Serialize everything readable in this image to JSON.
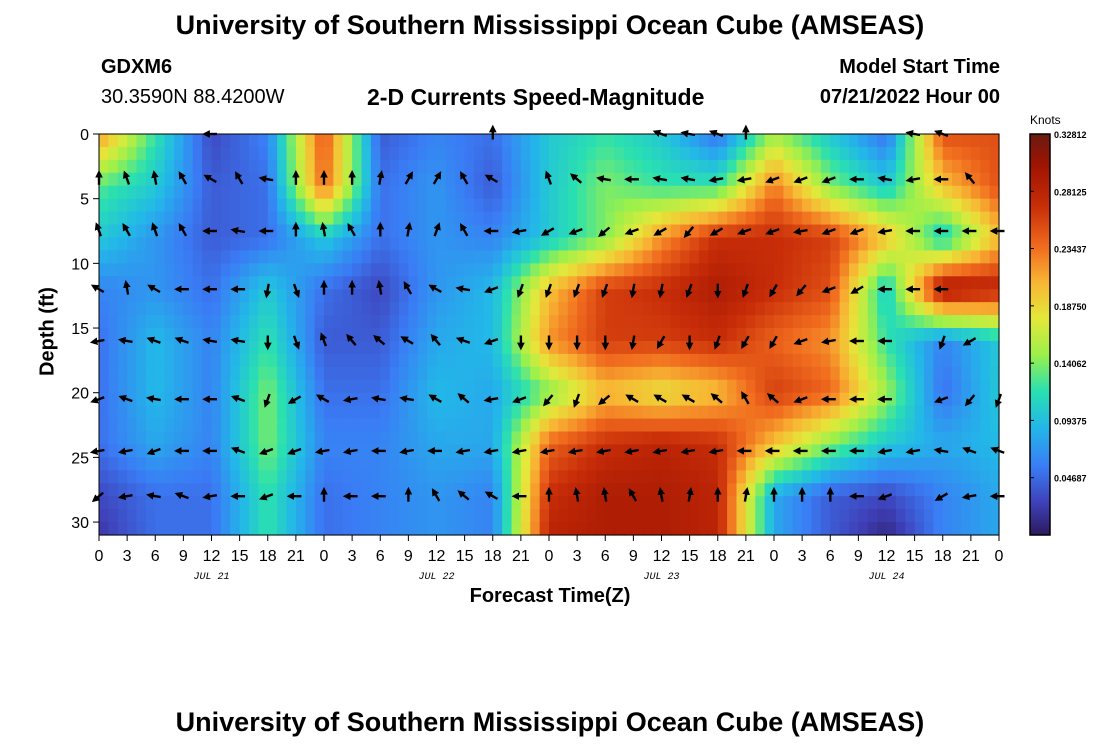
{
  "header": {
    "title": "University of Southern Mississippi Ocean Cube (AMSEAS)",
    "station": "GDXM6",
    "coords": "30.3590N  88.4200W",
    "subtitle": "2-D Currents Speed-Magnitude",
    "model_start_label": "Model Start Time",
    "model_start_value": "07/21/2022 Hour 00"
  },
  "footer": {
    "title": "University of Southern Mississippi Ocean Cube (AMSEAS)"
  },
  "chart_data": {
    "type": "heatmap",
    "title": "2-D Currents Speed-Magnitude",
    "xlabel": "Forecast Time(Z)",
    "ylabel": "Depth (ft)",
    "x_ticks": [
      "0",
      "3",
      "6",
      "9",
      "12",
      "15",
      "18",
      "21",
      "0",
      "3",
      "6",
      "9",
      "12",
      "15",
      "18",
      "21",
      "0",
      "3",
      "6",
      "9",
      "12",
      "15",
      "18",
      "21",
      "0",
      "3",
      "6",
      "9",
      "12",
      "15",
      "18",
      "21",
      "0"
    ],
    "date_labels": [
      {
        "label": "JUL 21",
        "hour": 12
      },
      {
        "label": "JUL 22",
        "hour": 36
      },
      {
        "label": "JUL 23",
        "hour": 60
      },
      {
        "label": "JUL 24",
        "hour": 84
      }
    ],
    "xlim": [
      0,
      96
    ],
    "y_ticks": [
      0,
      5,
      10,
      15,
      20,
      25,
      30
    ],
    "ylim": [
      0,
      31
    ],
    "colorbar": {
      "unit": "Knots",
      "min": 0.0,
      "max": 0.3281,
      "tick_values": [
        0.32812,
        0.28125,
        0.23437,
        0.1875,
        0.14062,
        0.09375,
        0.04687
      ],
      "tick_labels": [
        "0.32812",
        "0.28125",
        "0.23437",
        "0.18750",
        "0.14062",
        "0.09375",
        "0.04687"
      ]
    },
    "speed_grid": {
      "hours": [
        0,
        6,
        12,
        18,
        24,
        30,
        36,
        42,
        48,
        54,
        60,
        66,
        72,
        78,
        84,
        90,
        96
      ],
      "depths": [
        0,
        4,
        8,
        12,
        16,
        20,
        24,
        28,
        31
      ],
      "values": [
        [
          0.22,
          0.12,
          0.03,
          0.06,
          0.25,
          0.04,
          0.06,
          0.05,
          0.1,
          0.12,
          0.1,
          0.05,
          0.15,
          0.1,
          0.05,
          0.25,
          0.25
        ],
        [
          0.13,
          0.1,
          0.04,
          0.05,
          0.24,
          0.05,
          0.07,
          0.04,
          0.1,
          0.14,
          0.12,
          0.12,
          0.23,
          0.14,
          0.1,
          0.2,
          0.25
        ],
        [
          0.1,
          0.07,
          0.04,
          0.05,
          0.1,
          0.05,
          0.07,
          0.06,
          0.1,
          0.14,
          0.22,
          0.27,
          0.27,
          0.26,
          0.2,
          0.1,
          0.2
        ],
        [
          0.06,
          0.07,
          0.05,
          0.1,
          0.05,
          0.03,
          0.07,
          0.09,
          0.2,
          0.26,
          0.27,
          0.29,
          0.27,
          0.25,
          0.1,
          0.3,
          0.28
        ],
        [
          0.05,
          0.09,
          0.06,
          0.12,
          0.04,
          0.04,
          0.08,
          0.09,
          0.22,
          0.26,
          0.26,
          0.27,
          0.24,
          0.22,
          0.12,
          0.06,
          0.1
        ],
        [
          0.05,
          0.09,
          0.06,
          0.14,
          0.05,
          0.05,
          0.09,
          0.08,
          0.14,
          0.2,
          0.18,
          0.2,
          0.26,
          0.24,
          0.15,
          0.05,
          0.1
        ],
        [
          0.05,
          0.08,
          0.06,
          0.14,
          0.06,
          0.06,
          0.08,
          0.08,
          0.24,
          0.27,
          0.28,
          0.27,
          0.2,
          0.14,
          0.1,
          0.08,
          0.09
        ],
        [
          0.03,
          0.05,
          0.05,
          0.12,
          0.05,
          0.06,
          0.07,
          0.06,
          0.27,
          0.29,
          0.29,
          0.28,
          0.08,
          0.04,
          0.03,
          0.06,
          0.08
        ],
        [
          0.02,
          0.05,
          0.05,
          0.12,
          0.05,
          0.06,
          0.07,
          0.06,
          0.28,
          0.29,
          0.29,
          0.28,
          0.08,
          0.04,
          0.01,
          0.06,
          0.08
        ]
      ]
    },
    "vectors": {
      "hours": [
        0,
        3,
        6,
        9,
        12,
        15,
        18,
        21,
        24,
        27,
        30,
        33,
        36,
        39,
        42,
        45,
        48,
        51,
        54,
        57,
        60,
        63,
        66,
        69,
        72,
        75,
        78,
        81,
        84,
        87,
        90,
        93,
        96
      ],
      "depths": [
        0,
        3.5,
        7.5,
        12,
        16,
        20.5,
        24.5,
        28
      ],
      "angles_deg": [
        [
          null,
          null,
          null,
          null,
          180,
          null,
          null,
          null,
          null,
          null,
          null,
          null,
          null,
          null,
          90,
          null,
          null,
          null,
          null,
          null,
          160,
          170,
          160,
          90,
          null,
          null,
          null,
          null,
          null,
          170,
          160,
          null,
          null
        ],
        [
          90,
          110,
          100,
          120,
          150,
          120,
          170,
          90,
          90,
          90,
          80,
          60,
          60,
          120,
          150,
          null,
          110,
          140,
          170,
          180,
          170,
          170,
          190,
          190,
          200,
          200,
          200,
          180,
          170,
          190,
          180,
          130,
          null
        ],
        [
          110,
          120,
          110,
          120,
          180,
          170,
          180,
          90,
          100,
          120,
          90,
          80,
          70,
          120,
          180,
          190,
          210,
          200,
          220,
          200,
          210,
          230,
          210,
          200,
          200,
          190,
          200,
          200,
          190,
          180,
          180,
          180,
          180
        ],
        [
          150,
          100,
          150,
          180,
          180,
          180,
          260,
          290,
          90,
          90,
          100,
          120,
          150,
          170,
          200,
          250,
          250,
          250,
          250,
          260,
          260,
          250,
          270,
          250,
          240,
          230,
          200,
          210,
          180,
          180,
          180,
          null,
          null
        ],
        [
          190,
          170,
          160,
          160,
          170,
          170,
          270,
          290,
          110,
          130,
          140,
          150,
          130,
          160,
          200,
          270,
          270,
          270,
          270,
          260,
          240,
          270,
          250,
          240,
          240,
          200,
          190,
          180,
          180,
          null,
          250,
          210,
          null
        ],
        [
          200,
          160,
          170,
          180,
          180,
          160,
          250,
          210,
          150,
          190,
          170,
          170,
          150,
          140,
          190,
          200,
          230,
          250,
          220,
          150,
          150,
          150,
          140,
          120,
          140,
          200,
          180,
          180,
          180,
          null,
          200,
          230,
          250
        ],
        [
          190,
          190,
          200,
          180,
          180,
          160,
          200,
          200,
          190,
          190,
          180,
          190,
          180,
          190,
          190,
          190,
          190,
          190,
          190,
          190,
          190,
          190,
          190,
          180,
          180,
          180,
          180,
          180,
          190,
          190,
          170,
          160,
          160
        ],
        [
          220,
          190,
          170,
          160,
          190,
          180,
          200,
          180,
          90,
          180,
          180,
          90,
          120,
          140,
          150,
          180,
          90,
          100,
          100,
          120,
          100,
          80,
          90,
          80,
          90,
          90,
          90,
          180,
          200,
          null,
          210,
          190,
          180
        ]
      ]
    }
  }
}
